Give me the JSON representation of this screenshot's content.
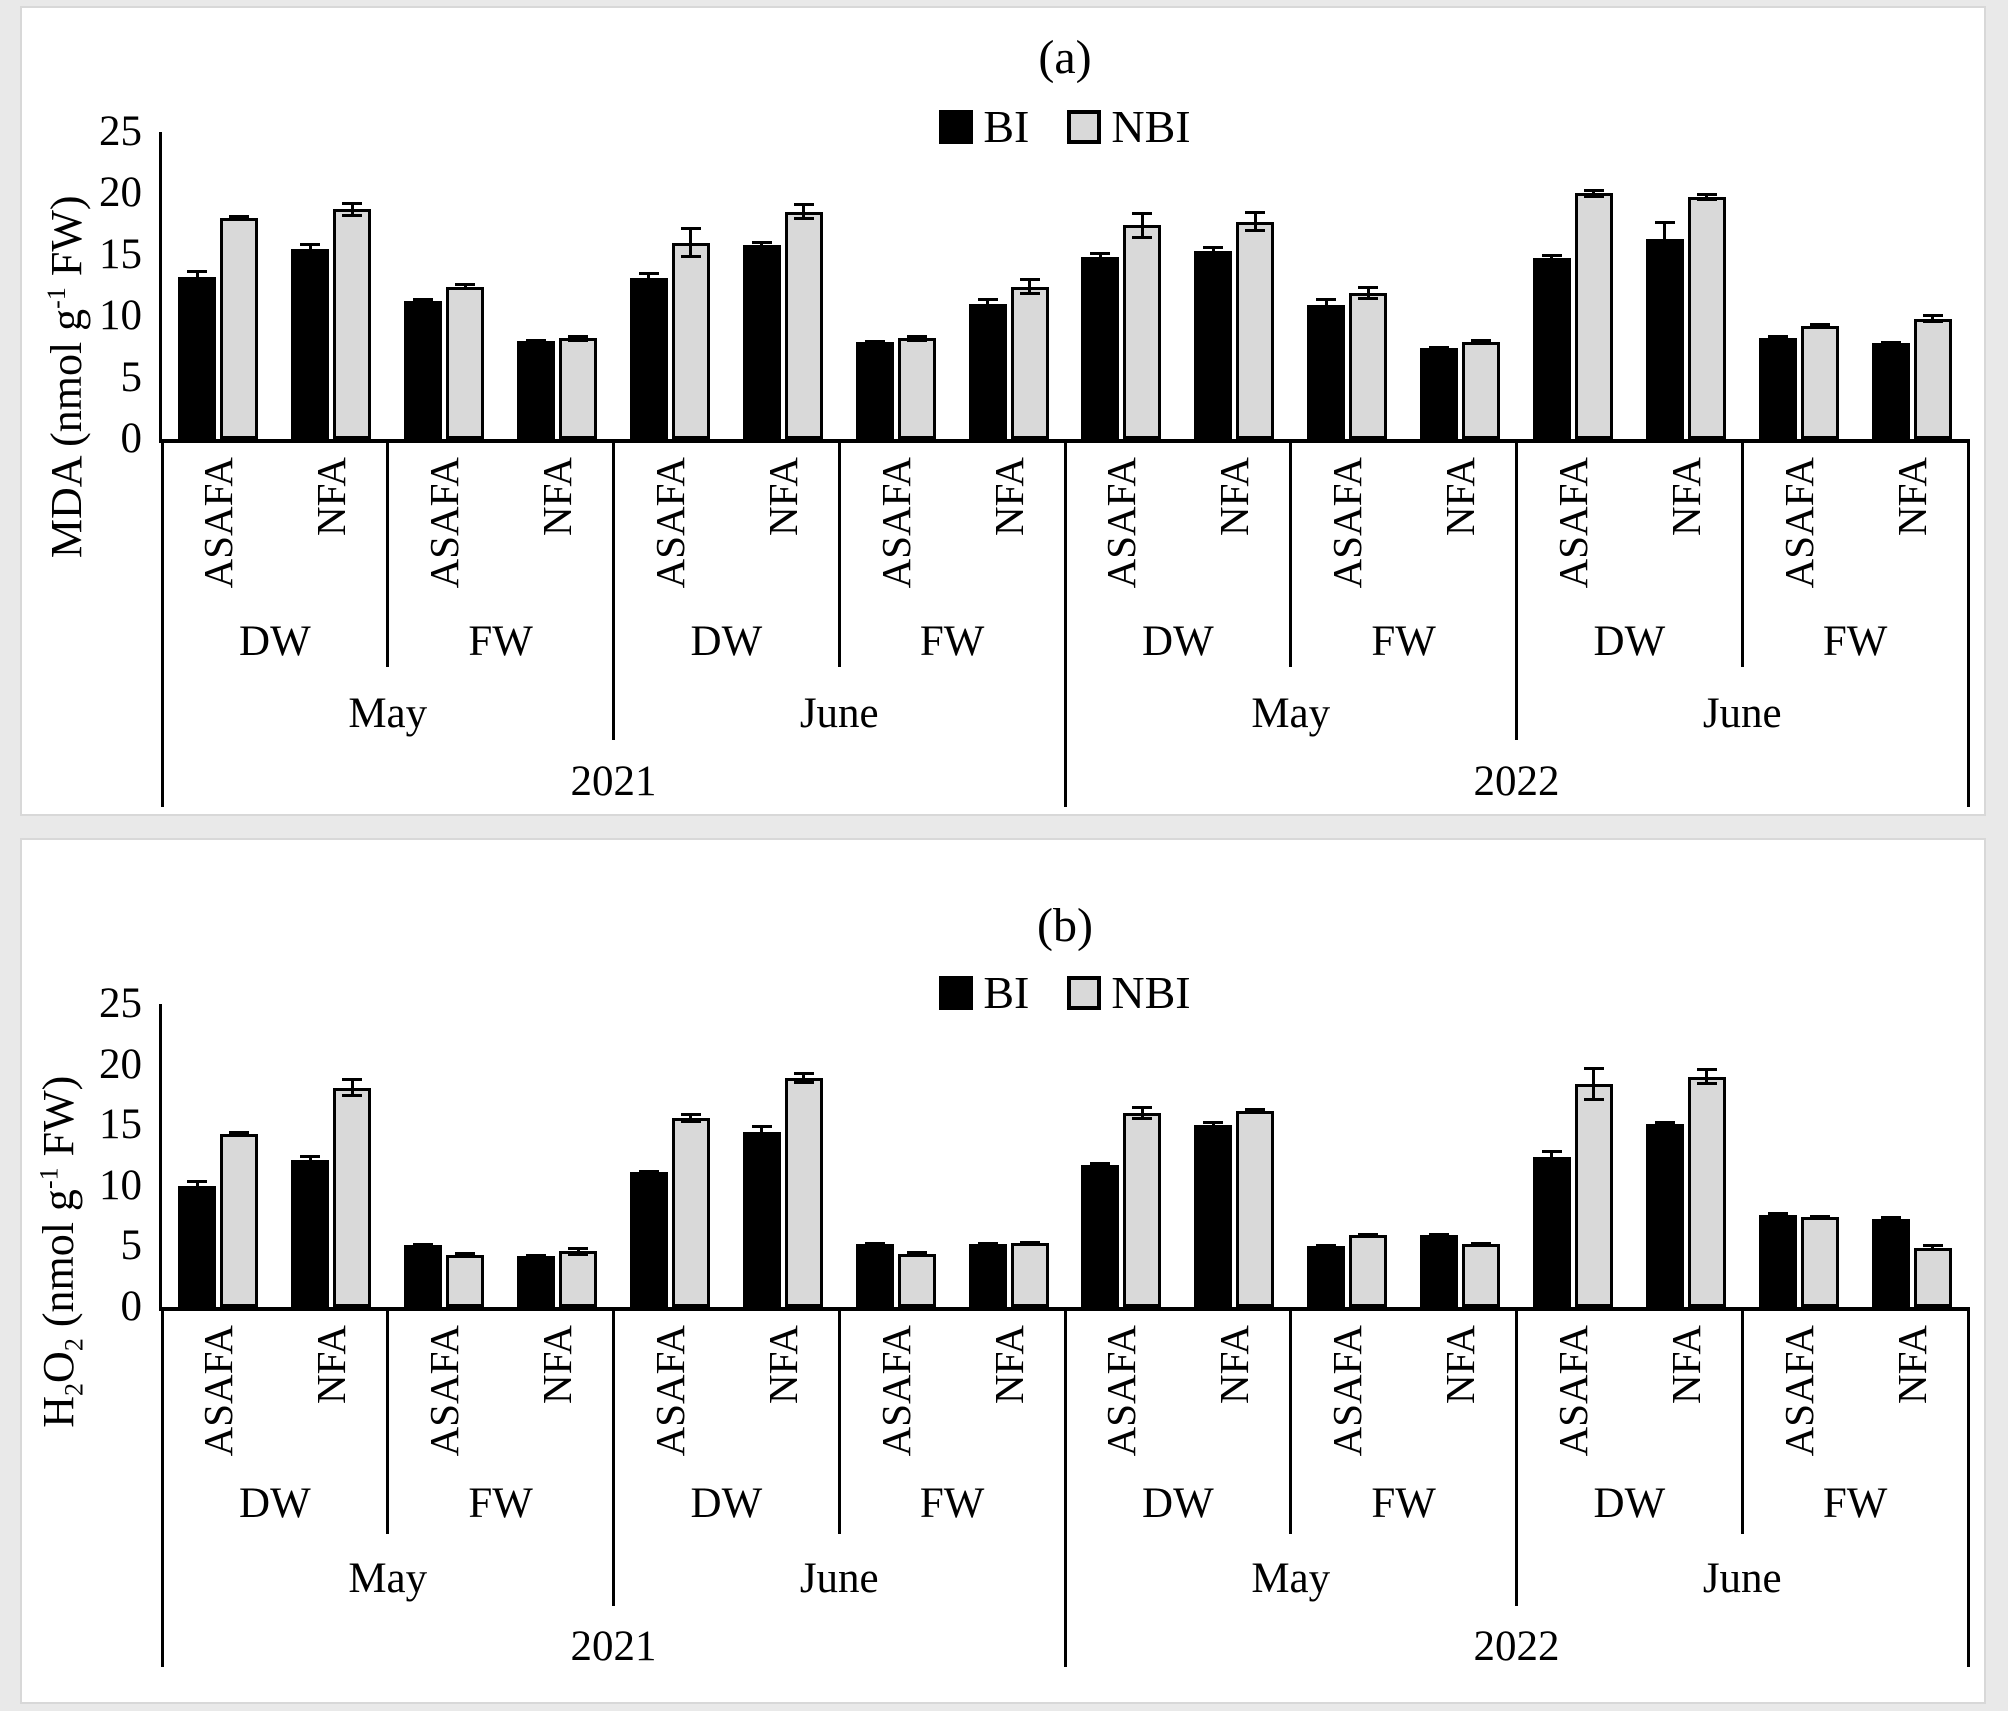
{
  "page": {
    "background_color": "#e9e9e9",
    "panel_background": "#ffffff",
    "panel_border_color": "#d8d8d8"
  },
  "legend": {
    "items": [
      {
        "label": "BI",
        "color": "#000000",
        "border": "#000000"
      },
      {
        "label": "NBI",
        "color": "#d9d9d9",
        "border": "#000000"
      }
    ],
    "position": "top-center"
  },
  "chart_data": [
    {
      "type": "bar",
      "panel": "a",
      "title": "(a)",
      "ylabel_segments": [
        {
          "text": "MDA (nmol g"
        },
        {
          "text": "-1",
          "style": "sup"
        },
        {
          "text": " FW)"
        }
      ],
      "legend": [
        "BI",
        "NBI"
      ],
      "legend_position": "top-center",
      "ylim": [
        0,
        25
      ],
      "yticks": [
        0,
        5,
        10,
        15,
        20,
        25
      ],
      "grid": false,
      "series_colors": {
        "BI": "#000000",
        "NBI": "#d9d9d9"
      },
      "hierarchy_levels": [
        "year",
        "month",
        "basis",
        "cultivar"
      ],
      "groups": [
        {
          "year": "2021",
          "month": "May",
          "basis": "DW",
          "cultivar": "ASAFA",
          "BI": 13.2,
          "BI_err": 0.5,
          "NBI": 18.0,
          "NBI_err": 0.2
        },
        {
          "year": "2021",
          "month": "May",
          "basis": "DW",
          "cultivar": "NFA",
          "BI": 15.5,
          "BI_err": 0.4,
          "NBI": 18.7,
          "NBI_err": 0.5
        },
        {
          "year": "2021",
          "month": "May",
          "basis": "FW",
          "cultivar": "ASAFA",
          "BI": 11.2,
          "BI_err": 0.2,
          "NBI": 12.4,
          "NBI_err": 0.2
        },
        {
          "year": "2021",
          "month": "May",
          "basis": "FW",
          "cultivar": "NFA",
          "BI": 8.0,
          "BI_err": 0.1,
          "NBI": 8.2,
          "NBI_err": 0.2
        },
        {
          "year": "2021",
          "month": "June",
          "basis": "DW",
          "cultivar": "ASAFA",
          "BI": 13.1,
          "BI_err": 0.4,
          "NBI": 16.0,
          "NBI_err": 1.2
        },
        {
          "year": "2021",
          "month": "June",
          "basis": "DW",
          "cultivar": "NFA",
          "BI": 15.8,
          "BI_err": 0.25,
          "NBI": 18.5,
          "NBI_err": 0.6
        },
        {
          "year": "2021",
          "month": "June",
          "basis": "FW",
          "cultivar": "ASAFA",
          "BI": 7.9,
          "BI_err": 0.1,
          "NBI": 8.2,
          "NBI_err": 0.2
        },
        {
          "year": "2021",
          "month": "June",
          "basis": "FW",
          "cultivar": "NFA",
          "BI": 11.0,
          "BI_err": 0.4,
          "NBI": 12.4,
          "NBI_err": 0.6
        },
        {
          "year": "2022",
          "month": "May",
          "basis": "DW",
          "cultivar": "ASAFA",
          "BI": 14.8,
          "BI_err": 0.35,
          "NBI": 17.4,
          "NBI_err": 1.0
        },
        {
          "year": "2022",
          "month": "May",
          "basis": "DW",
          "cultivar": "NFA",
          "BI": 15.3,
          "BI_err": 0.3,
          "NBI": 17.7,
          "NBI_err": 0.8
        },
        {
          "year": "2022",
          "month": "May",
          "basis": "FW",
          "cultivar": "ASAFA",
          "BI": 10.9,
          "BI_err": 0.5,
          "NBI": 11.9,
          "NBI_err": 0.5
        },
        {
          "year": "2022",
          "month": "May",
          "basis": "FW",
          "cultivar": "NFA",
          "BI": 7.4,
          "BI_err": 0.1,
          "NBI": 7.9,
          "NBI_err": 0.15
        },
        {
          "year": "2022",
          "month": "June",
          "basis": "DW",
          "cultivar": "ASAFA",
          "BI": 14.7,
          "BI_err": 0.3,
          "NBI": 20.0,
          "NBI_err": 0.3
        },
        {
          "year": "2022",
          "month": "June",
          "basis": "DW",
          "cultivar": "NFA",
          "BI": 16.3,
          "BI_err": 1.4,
          "NBI": 19.7,
          "NBI_err": 0.25
        },
        {
          "year": "2022",
          "month": "June",
          "basis": "FW",
          "cultivar": "ASAFA",
          "BI": 8.2,
          "BI_err": 0.15,
          "NBI": 9.2,
          "NBI_err": 0.2
        },
        {
          "year": "2022",
          "month": "June",
          "basis": "FW",
          "cultivar": "NFA",
          "BI": 7.8,
          "BI_err": 0.1,
          "NBI": 9.8,
          "NBI_err": 0.3
        }
      ]
    },
    {
      "type": "bar",
      "panel": "b",
      "title": "(b)",
      "ylabel_segments": [
        {
          "text": "H"
        },
        {
          "text": "2",
          "style": "sub"
        },
        {
          "text": "O"
        },
        {
          "text": "2",
          "style": "sub"
        },
        {
          "text": " (nmol g"
        },
        {
          "text": "-1",
          "style": "sup"
        },
        {
          "text": " FW)"
        }
      ],
      "legend": [
        "BI",
        "NBI"
      ],
      "legend_position": "top-center",
      "ylim": [
        0,
        25
      ],
      "yticks": [
        0,
        5,
        10,
        15,
        20,
        25
      ],
      "grid": false,
      "series_colors": {
        "BI": "#000000",
        "NBI": "#d9d9d9"
      },
      "hierarchy_levels": [
        "year",
        "month",
        "basis",
        "cultivar"
      ],
      "groups": [
        {
          "year": "2021",
          "month": "May",
          "basis": "DW",
          "cultivar": "ASAFA",
          "BI": 10.0,
          "BI_err": 0.4,
          "NBI": 14.3,
          "NBI_err": 0.15
        },
        {
          "year": "2021",
          "month": "May",
          "basis": "DW",
          "cultivar": "NFA",
          "BI": 12.1,
          "BI_err": 0.35,
          "NBI": 18.1,
          "NBI_err": 0.7
        },
        {
          "year": "2021",
          "month": "May",
          "basis": "FW",
          "cultivar": "ASAFA",
          "BI": 5.1,
          "BI_err": 0.1,
          "NBI": 4.3,
          "NBI_err": 0.15
        },
        {
          "year": "2021",
          "month": "May",
          "basis": "FW",
          "cultivar": "NFA",
          "BI": 4.2,
          "BI_err": 0.1,
          "NBI": 4.6,
          "NBI_err": 0.3
        },
        {
          "year": "2021",
          "month": "June",
          "basis": "DW",
          "cultivar": "ASAFA",
          "BI": 11.1,
          "BI_err": 0.15,
          "NBI": 15.6,
          "NBI_err": 0.3
        },
        {
          "year": "2021",
          "month": "June",
          "basis": "DW",
          "cultivar": "NFA",
          "BI": 14.4,
          "BI_err": 0.5,
          "NBI": 18.9,
          "NBI_err": 0.4
        },
        {
          "year": "2021",
          "month": "June",
          "basis": "FW",
          "cultivar": "ASAFA",
          "BI": 5.2,
          "BI_err": 0.1,
          "NBI": 4.4,
          "NBI_err": 0.1
        },
        {
          "year": "2021",
          "month": "June",
          "basis": "FW",
          "cultivar": "NFA",
          "BI": 5.2,
          "BI_err": 0.1,
          "NBI": 5.3,
          "NBI_err": 0.1
        },
        {
          "year": "2022",
          "month": "May",
          "basis": "DW",
          "cultivar": "ASAFA",
          "BI": 11.7,
          "BI_err": 0.2,
          "NBI": 16.0,
          "NBI_err": 0.5
        },
        {
          "year": "2022",
          "month": "May",
          "basis": "DW",
          "cultivar": "NFA",
          "BI": 15.0,
          "BI_err": 0.3,
          "NBI": 16.2,
          "NBI_err": 0.1
        },
        {
          "year": "2022",
          "month": "May",
          "basis": "FW",
          "cultivar": "ASAFA",
          "BI": 5.0,
          "BI_err": 0.1,
          "NBI": 5.9,
          "NBI_err": 0.1
        },
        {
          "year": "2022",
          "month": "May",
          "basis": "FW",
          "cultivar": "NFA",
          "BI": 5.9,
          "BI_err": 0.1,
          "NBI": 5.2,
          "NBI_err": 0.1
        },
        {
          "year": "2022",
          "month": "June",
          "basis": "DW",
          "cultivar": "ASAFA",
          "BI": 12.4,
          "BI_err": 0.5,
          "NBI": 18.4,
          "NBI_err": 1.3
        },
        {
          "year": "2022",
          "month": "June",
          "basis": "DW",
          "cultivar": "NFA",
          "BI": 15.1,
          "BI_err": 0.2,
          "NBI": 19.0,
          "NBI_err": 0.6
        },
        {
          "year": "2022",
          "month": "June",
          "basis": "FW",
          "cultivar": "ASAFA",
          "BI": 7.6,
          "BI_err": 0.15,
          "NBI": 7.4,
          "NBI_err": 0.1
        },
        {
          "year": "2022",
          "month": "June",
          "basis": "FW",
          "cultivar": "NFA",
          "BI": 7.3,
          "BI_err": 0.15,
          "NBI": 4.9,
          "NBI_err": 0.2
        }
      ]
    }
  ]
}
